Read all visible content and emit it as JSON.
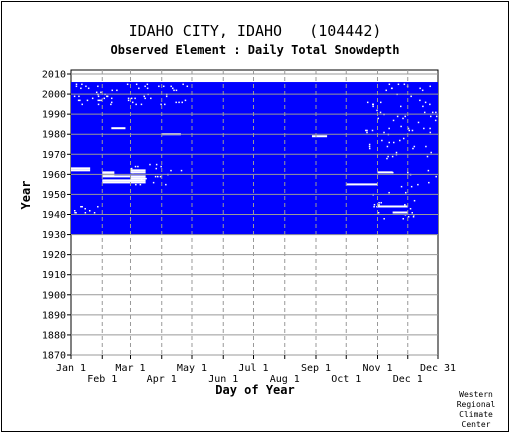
{
  "chart_data": {
    "type": "heatmap",
    "title": "IDAHO CITY, IDAHO   (104442)",
    "subtitle": "Observed Element : Daily Total Snowdepth",
    "xlabel": "Day of Year",
    "ylabel": "Year",
    "ylim": [
      1870,
      2012
    ],
    "data_years": [
      1930,
      2005
    ],
    "x_ticks_top": [
      "Jan 1",
      "Mar 1",
      "May 1",
      "Jul 1",
      "Sep 1",
      "Nov 1",
      "Dec 31"
    ],
    "x_ticks_bottom": [
      "Feb 1",
      "Apr 1",
      "Jun 1",
      "Aug 1",
      "Oct 1",
      "Dec 1"
    ],
    "y_ticks": [
      "2010",
      "2000",
      "1990",
      "1980",
      "1970",
      "1960",
      "1950",
      "1940",
      "1930",
      "1920",
      "1910",
      "1900",
      "1890",
      "1880",
      "1870"
    ],
    "grid": true,
    "colors": {
      "data": "#0000ff",
      "missing": "#ffffff",
      "grid": "#999999"
    },
    "missing_runs": [
      {
        "year": 1983,
        "start_day": 41,
        "end_day": 55
      },
      {
        "year": 1980,
        "start_day": 91,
        "end_day": 110
      },
      {
        "year": 1979,
        "start_day": 240,
        "end_day": 255
      },
      {
        "year": 1963,
        "start_day": 1,
        "end_day": 20
      },
      {
        "year": 1962,
        "start_day": 1,
        "end_day": 20
      },
      {
        "year": 1962,
        "start_day": 60,
        "end_day": 75
      },
      {
        "year": 1961,
        "start_day": 32,
        "end_day": 44
      },
      {
        "year": 1961,
        "start_day": 60,
        "end_day": 75
      },
      {
        "year": 1961,
        "start_day": 305,
        "end_day": 320
      },
      {
        "year": 1960,
        "start_day": 32,
        "end_day": 44
      },
      {
        "year": 1959,
        "start_day": 32,
        "end_day": 75
      },
      {
        "year": 1958,
        "start_day": 60,
        "end_day": 75
      },
      {
        "year": 1957,
        "start_day": 32,
        "end_day": 75
      },
      {
        "year": 1956,
        "start_day": 32,
        "end_day": 75
      },
      {
        "year": 1955,
        "start_day": 274,
        "end_day": 305
      },
      {
        "year": 1944,
        "start_day": 305,
        "end_day": 335
      },
      {
        "year": 1941,
        "start_day": 320,
        "end_day": 335
      }
    ]
  },
  "credit": [
    "Western",
    "Regional",
    "Climate",
    "Center"
  ]
}
